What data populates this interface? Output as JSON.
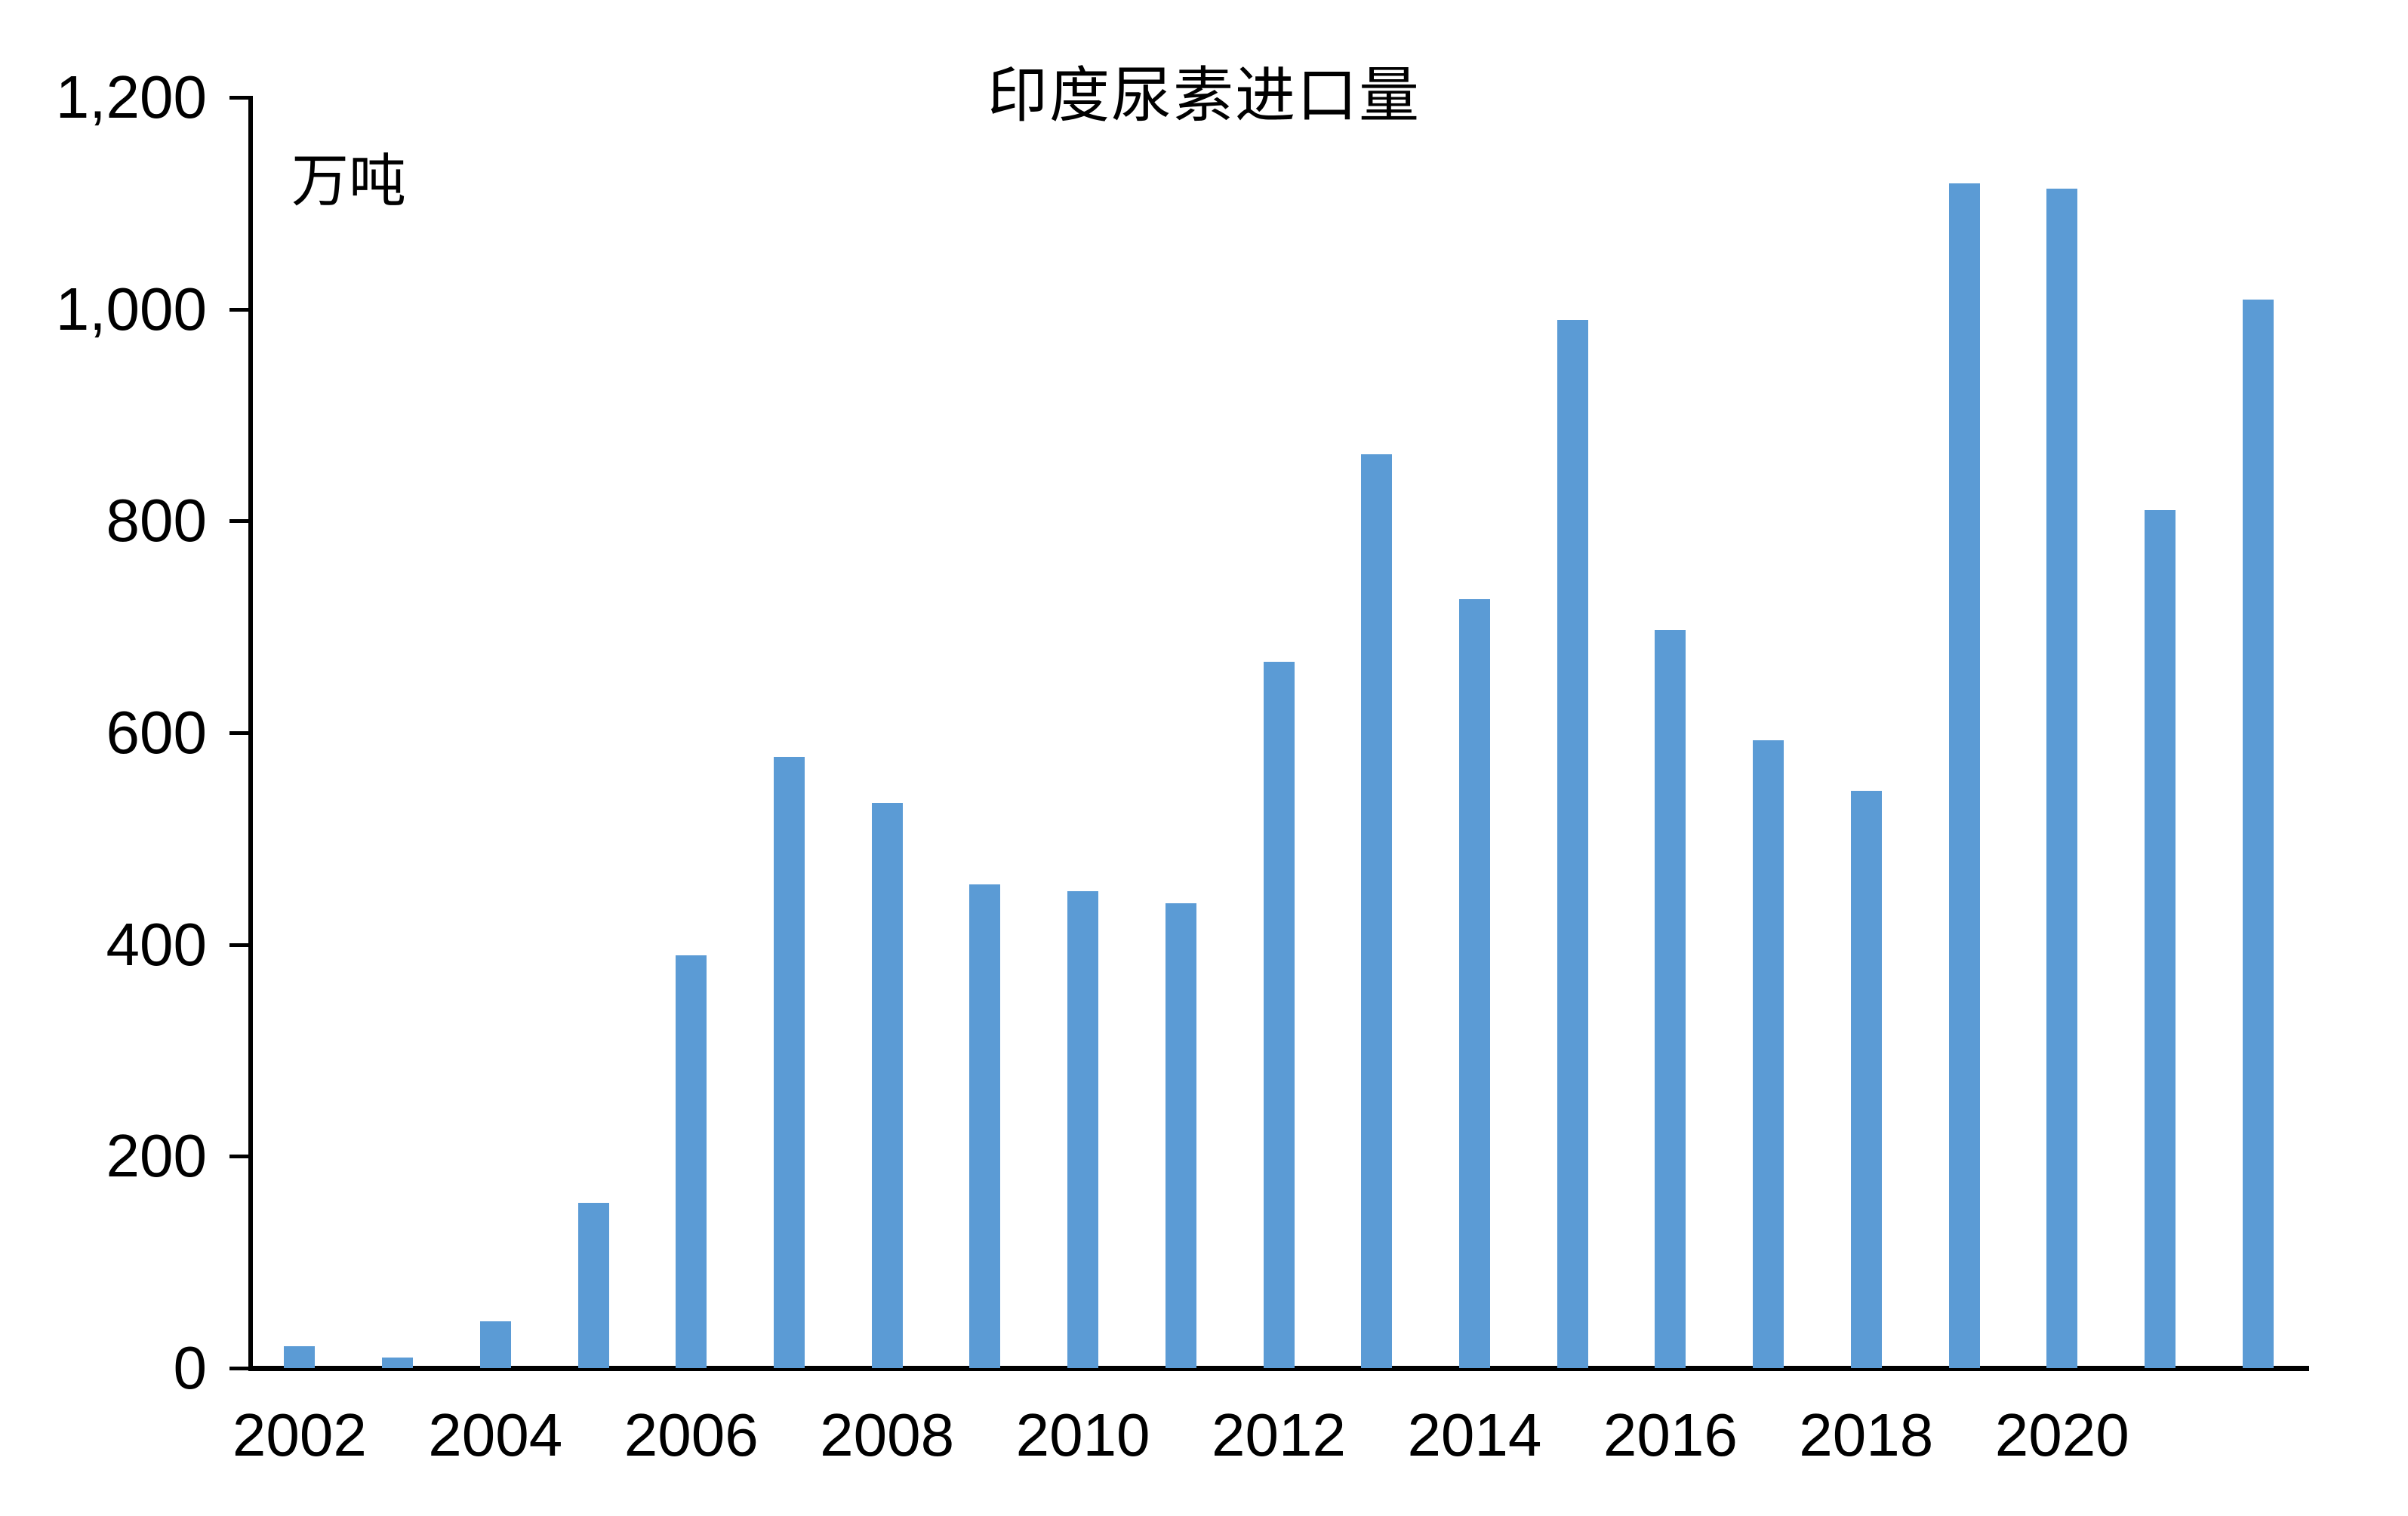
{
  "title": "印度尿素进口量",
  "unit_label": "万吨",
  "colors": {
    "bar": "#5B9BD5",
    "axis": "#000000",
    "background": "#FFFFFF",
    "text": "#000000"
  },
  "chart_data": {
    "type": "bar",
    "title": "印度尿素进口量",
    "ylabel": "万吨",
    "xlabel": "",
    "x": [
      2002,
      2003,
      2004,
      2005,
      2006,
      2007,
      2008,
      2009,
      2010,
      2011,
      2012,
      2013,
      2014,
      2015,
      2016,
      2017,
      2018,
      2019,
      2020,
      2021,
      2022
    ],
    "values": [
      21,
      10,
      44,
      156,
      390,
      577,
      534,
      457,
      450,
      439,
      667,
      863,
      726,
      990,
      697,
      593,
      545,
      1119,
      1114,
      810,
      1009
    ],
    "ylim": [
      0,
      1200
    ],
    "ytick_interval": 200,
    "ytick_labels": [
      "0",
      "200",
      "400",
      "600",
      "800",
      "1,000",
      "1,200"
    ],
    "xtick_years": [
      2002,
      2004,
      2006,
      2008,
      2010,
      2012,
      2014,
      2016,
      2018,
      2020
    ],
    "xtick_labels": [
      "2002",
      "2004",
      "2006",
      "2008",
      "2010",
      "2012",
      "2014",
      "2016",
      "2018",
      "2020"
    ],
    "grid": false,
    "legend": "none",
    "bar_color": "#5B9BD5"
  }
}
